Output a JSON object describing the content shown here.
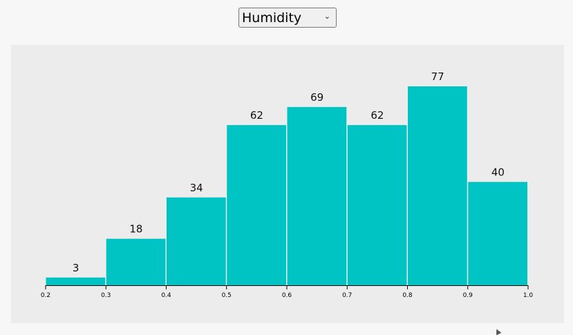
{
  "selector": {
    "selected": "Humidity",
    "options": [
      "Humidity"
    ]
  },
  "icons": {
    "dropdown": "chevron-down-icon",
    "cursor": "mouse-pointer-icon"
  },
  "colors": {
    "bar": "#00c4c4",
    "panel_bg": "#ececec",
    "page_bg": "#f7f7f7"
  },
  "chart_data": {
    "type": "bar",
    "title": "",
    "xlabel": "",
    "ylabel": "",
    "bins": [
      {
        "x0": 0.2,
        "x1": 0.3,
        "count": 3
      },
      {
        "x0": 0.3,
        "x1": 0.4,
        "count": 18
      },
      {
        "x0": 0.4,
        "x1": 0.5,
        "count": 34
      },
      {
        "x0": 0.5,
        "x1": 0.6,
        "count": 62
      },
      {
        "x0": 0.6,
        "x1": 0.7,
        "count": 69
      },
      {
        "x0": 0.7,
        "x1": 0.8,
        "count": 62
      },
      {
        "x0": 0.8,
        "x1": 0.9,
        "count": 77
      },
      {
        "x0": 0.9,
        "x1": 1.0,
        "count": 40
      }
    ],
    "xticks": [
      "0.2",
      "0.3",
      "0.4",
      "0.5",
      "0.6",
      "0.7",
      "0.8",
      "0.9",
      "1.0"
    ],
    "xlim": [
      0.2,
      1.0
    ],
    "ylim": [
      0,
      77
    ],
    "grid": false,
    "legend": "none"
  }
}
